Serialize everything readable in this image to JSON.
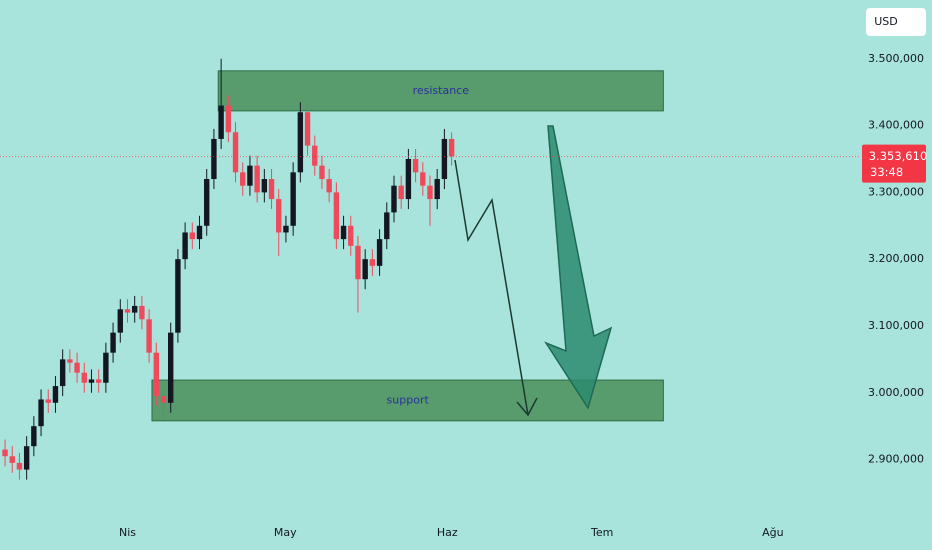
{
  "chart_data": {
    "type": "candlestick",
    "currency": "USD",
    "x": [
      0,
      1,
      2,
      3,
      4,
      5,
      6,
      7,
      8,
      9,
      10,
      11,
      12,
      13,
      14,
      15,
      16,
      17,
      18,
      19,
      20,
      21,
      22,
      23,
      24,
      25,
      26,
      27,
      28,
      29,
      30,
      31,
      32,
      33,
      34,
      35,
      36,
      37,
      38,
      39,
      40,
      41,
      42,
      43,
      44,
      45,
      46,
      47,
      48,
      49,
      50,
      51,
      52,
      53,
      54,
      55,
      56,
      57,
      58,
      59,
      60,
      61,
      62
    ],
    "open": [
      2915,
      2905,
      2895,
      2885,
      2920,
      2950,
      2990,
      2985,
      3010,
      3050,
      3045,
      3030,
      3015,
      3020,
      3015,
      3060,
      3090,
      3125,
      3120,
      3130,
      3110,
      3060,
      2995,
      2985,
      3090,
      3200,
      3240,
      3230,
      3250,
      3320,
      3380,
      3430,
      3390,
      3330,
      3310,
      3340,
      3300,
      3320,
      3290,
      3240,
      3250,
      3330,
      3420,
      3370,
      3340,
      3320,
      3300,
      3230,
      3250,
      3220,
      3170,
      3200,
      3190,
      3230,
      3270,
      3310,
      3290,
      3350,
      3330,
      3310,
      3290,
      3320,
      3380
    ],
    "high": [
      2930,
      2920,
      2910,
      2935,
      2965,
      3005,
      3005,
      3025,
      3065,
      3065,
      3060,
      3045,
      3035,
      3035,
      3075,
      3105,
      3140,
      3140,
      3145,
      3145,
      3125,
      3075,
      3010,
      3105,
      3215,
      3255,
      3255,
      3265,
      3335,
      3395,
      3500,
      3445,
      3405,
      3345,
      3355,
      3355,
      3335,
      3335,
      3305,
      3265,
      3345,
      3435,
      3435,
      3385,
      3355,
      3335,
      3315,
      3265,
      3265,
      3235,
      3215,
      3215,
      3245,
      3285,
      3325,
      3325,
      3365,
      3365,
      3345,
      3325,
      3335,
      3395,
      3390
    ],
    "low": [
      2890,
      2880,
      2870,
      2870,
      2905,
      2935,
      2970,
      2970,
      2995,
      3030,
      3015,
      3000,
      3000,
      3000,
      3000,
      3045,
      3075,
      3105,
      3105,
      3095,
      3045,
      2980,
      2960,
      2970,
      3075,
      3185,
      3215,
      3215,
      3235,
      3305,
      3365,
      3375,
      3315,
      3295,
      3295,
      3285,
      3285,
      3275,
      3205,
      3225,
      3235,
      3315,
      3355,
      3325,
      3305,
      3285,
      3215,
      3215,
      3205,
      3120,
      3155,
      3175,
      3175,
      3215,
      3255,
      3275,
      3275,
      3315,
      3295,
      3250,
      3275,
      3305,
      3340
    ],
    "close": [
      2905,
      2895,
      2885,
      2920,
      2950,
      2990,
      2985,
      3010,
      3050,
      3045,
      3030,
      3015,
      3020,
      3015,
      3060,
      3090,
      3125,
      3120,
      3130,
      3110,
      3060,
      2995,
      2985,
      3090,
      3200,
      3240,
      3230,
      3250,
      3320,
      3380,
      3430,
      3390,
      3330,
      3310,
      3340,
      3300,
      3320,
      3290,
      3240,
      3250,
      3330,
      3420,
      3370,
      3340,
      3320,
      3300,
      3230,
      3250,
      3220,
      3170,
      3200,
      3190,
      3230,
      3270,
      3310,
      3290,
      3350,
      3330,
      3310,
      3290,
      3320,
      3380,
      3354
    ],
    "up_color": "#131722",
    "down_color": "#ef4a5b",
    "xlim": [
      -0.7,
      118.7
    ],
    "xticks": [
      {
        "value": 17,
        "label": "Nis"
      },
      {
        "value": 38.9,
        "label": "May"
      },
      {
        "value": 61.4,
        "label": "Haz"
      },
      {
        "value": 82.9,
        "label": "Tem"
      },
      {
        "value": 106.6,
        "label": "Ağu"
      }
    ],
    "ylim": [
      2817,
      3588
    ],
    "yticks": [
      {
        "value": 2900,
        "label": "2.900,000"
      },
      {
        "value": 3000,
        "label": "3.000,000"
      },
      {
        "value": 3100,
        "label": "3.100,000"
      },
      {
        "value": 3200,
        "label": "3.200,000"
      },
      {
        "value": 3300,
        "label": "3.300,000"
      },
      {
        "value": 3400,
        "label": "3.400,000"
      },
      {
        "value": 3500,
        "label": "3.500,000"
      }
    ],
    "zones": [
      {
        "label": "resistance",
        "x": [
          29.6,
          91.4
        ],
        "from": 3422,
        "to": 3482
      },
      {
        "label": "support",
        "x": [
          20.4,
          91.4
        ],
        "from": 2958,
        "to": 3019
      }
    ],
    "zone_color": "#4f9462",
    "last_price": {
      "value": 3353.61,
      "label": "3.353,610"
    },
    "countdown": "33:48",
    "last_price_color": "#f23645"
  }
}
